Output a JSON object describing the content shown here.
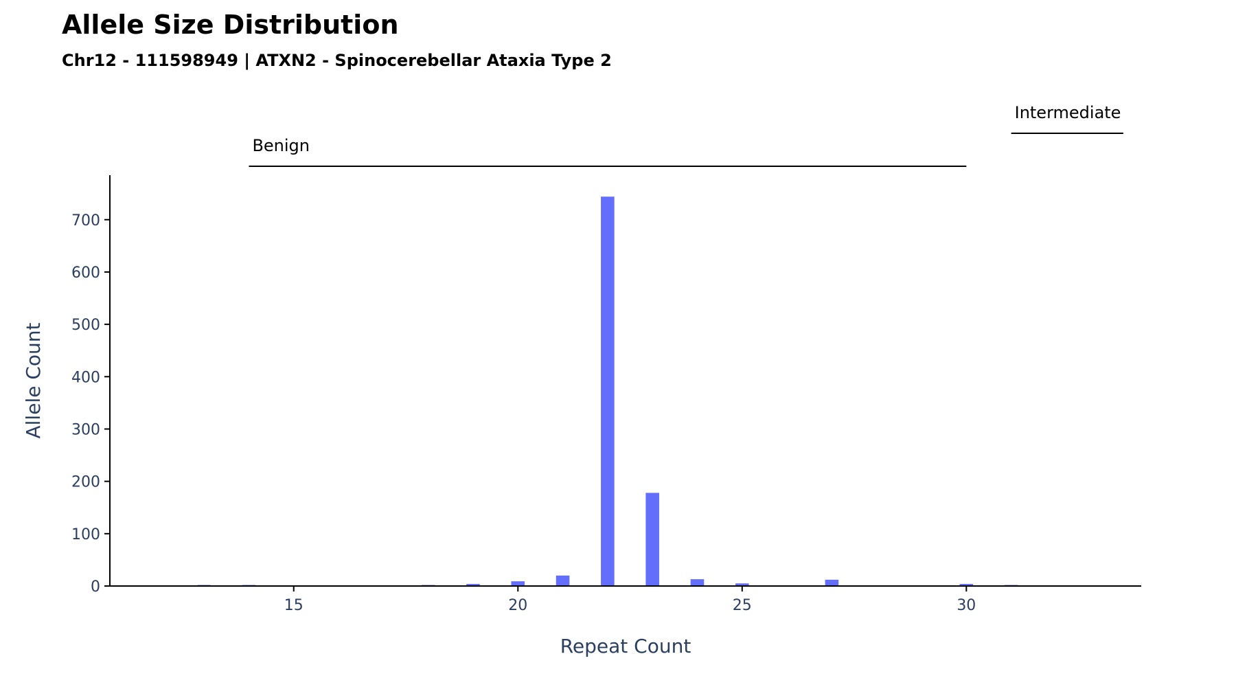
{
  "chart_data": {
    "type": "bar",
    "title": "Allele Size Distribution",
    "subtitle": "Chr12 - 111598949 | ATXN2 - Spinocerebellar Ataxia Type 2",
    "xlabel": "Repeat Count",
    "ylabel": "Allele Count",
    "xlim": [
      10.9,
      33.9
    ],
    "ylim": [
      0,
      785
    ],
    "xticks": [
      15,
      20,
      25,
      30
    ],
    "yticks": [
      0,
      100,
      200,
      300,
      400,
      500,
      600,
      700
    ],
    "grid": false,
    "bar_color": "#636efa",
    "x": [
      11,
      13,
      14,
      15,
      16,
      17,
      18,
      19,
      20,
      21,
      22,
      23,
      24,
      25,
      26,
      27,
      28,
      29,
      30,
      31
    ],
    "values": [
      1,
      2,
      2,
      1,
      1,
      1,
      2,
      4,
      9,
      20,
      744,
      178,
      13,
      5,
      1,
      12,
      1,
      1,
      4,
      2
    ],
    "ranges": [
      {
        "label": "Benign",
        "start": 14,
        "end": 30
      },
      {
        "label": "Intermediate",
        "start": 31,
        "end": 33.5
      }
    ]
  }
}
